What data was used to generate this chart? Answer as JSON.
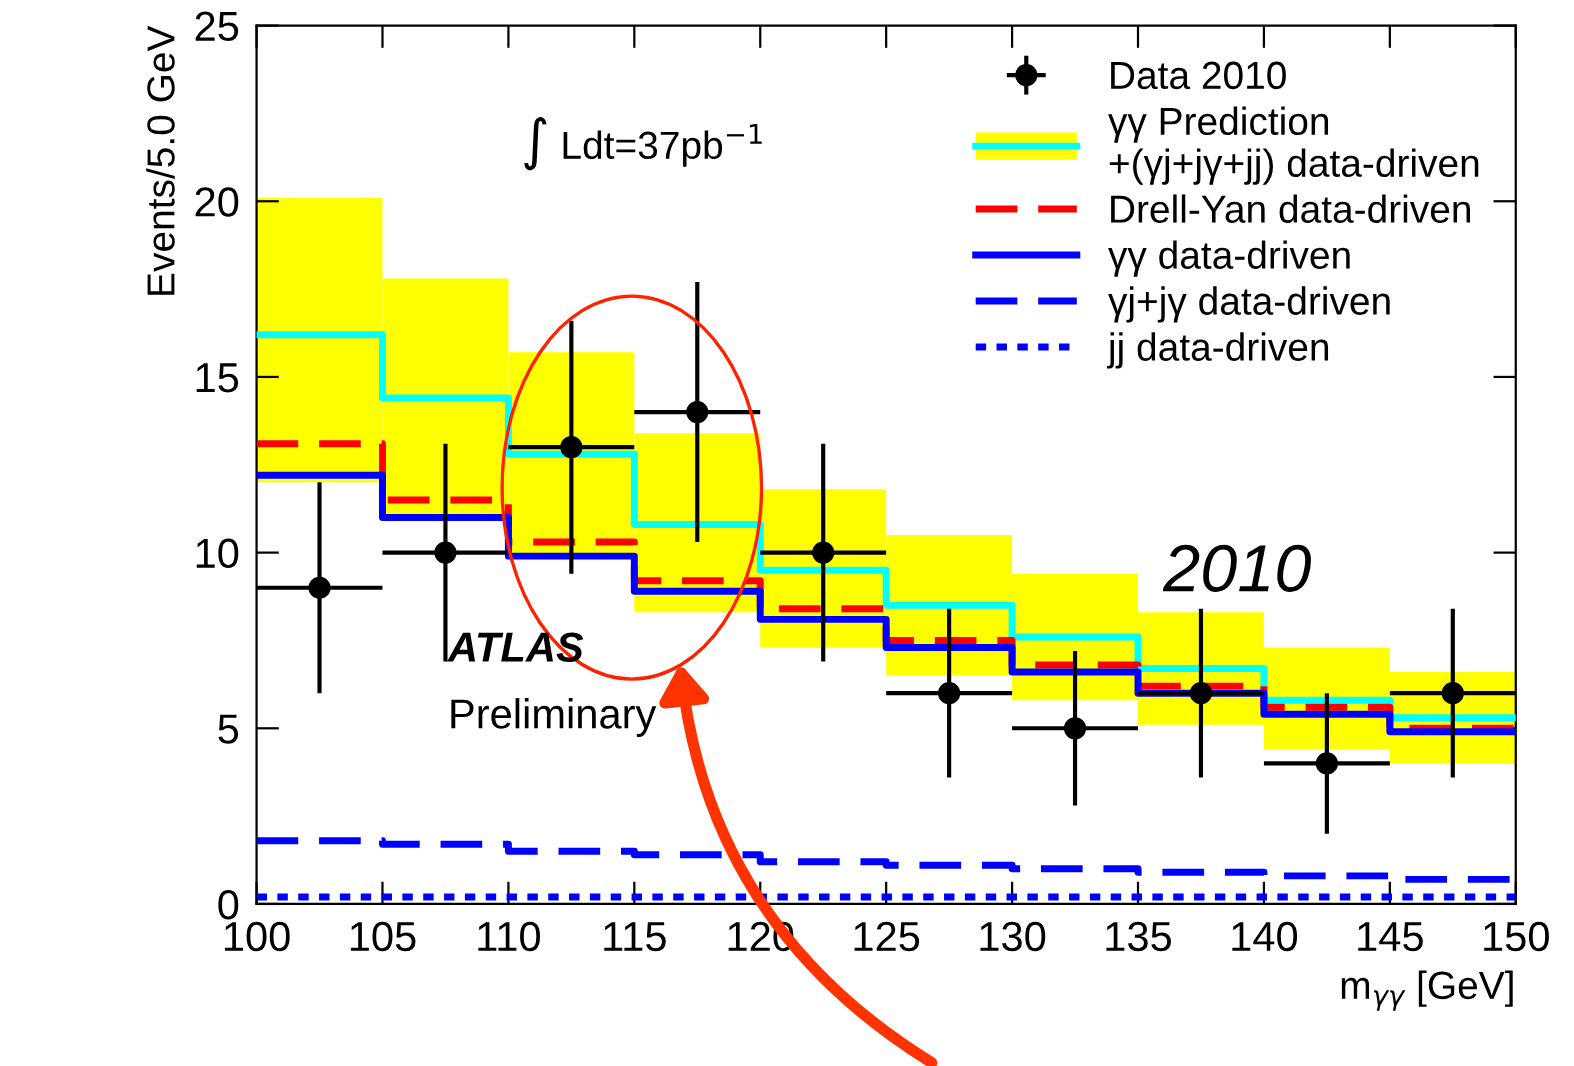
{
  "chart_data": {
    "type": "step",
    "xlabel": "m$_{γγ}$ [GeV]",
    "ylabel": "Events/5.0 GeV",
    "xlim": [
      100,
      150
    ],
    "xticks": [
      100,
      105,
      110,
      115,
      120,
      125,
      130,
      135,
      140,
      145,
      150
    ],
    "ylim": [
      0,
      25
    ],
    "yticks": [
      0,
      5,
      10,
      15,
      20,
      25
    ],
    "legend": "top right",
    "annotations": [
      "∫ Ldt=37pb$^{−1}$",
      "ATLAS",
      "Preliminary",
      "2010"
    ],
    "series": [
      {
        "name": "Data 2010",
        "type": "scatter",
        "marker": "circle",
        "color": "#000000",
        "x": [
          102.5,
          107.5,
          112.5,
          117.5,
          122.5,
          127.5,
          132.5,
          137.5,
          142.5,
          147.5
        ],
        "values": [
          9,
          10,
          13,
          14,
          10,
          6,
          5,
          6,
          4,
          6
        ],
        "errors": [
          [
            6,
            12
          ],
          [
            6.9,
            13.1
          ],
          [
            9.4,
            16.6
          ],
          [
            10.3,
            17.7
          ],
          [
            6.9,
            13.1
          ],
          [
            3.6,
            8.4
          ],
          [
            2.8,
            7.2
          ],
          [
            3.6,
            8.4
          ],
          [
            2,
            6
          ],
          [
            3.6,
            8.4
          ]
        ],
        "xerrors": [
          2.5,
          2.5,
          2.5,
          2.5,
          2.5,
          2.5,
          2.5,
          2.5,
          2.5,
          2.5
        ]
      },
      {
        "type": "bar",
        "color": "#ffff00",
        "x": [
          102.5,
          107.5,
          112.5,
          117.5,
          122.5,
          127.5,
          132.5,
          137.5,
          142.5,
          147.5
        ],
        "base": [
          12,
          11,
          9.9,
          8.3,
          7.3,
          6.5,
          5.8,
          5.1,
          4.4,
          4
        ],
        "values": [
          8.1,
          6.8,
          5.8,
          5.1,
          4.5,
          4.0,
          3.6,
          3.2,
          2.9,
          2.6
        ]
      },
      {
        "name": "γγ Prediction\n+(γj+jγ+jj) data-driven",
        "color": "#00ffff",
        "line_style": "solid",
        "x": [
          100,
          105,
          110,
          115,
          120,
          125,
          130,
          135,
          140,
          145,
          150
        ],
        "values": [
          16.2,
          14.4,
          12.8,
          10.8,
          9.5,
          8.5,
          7.6,
          6.7,
          5.8,
          5.3,
          5.3
        ]
      },
      {
        "name": "Drell-Yan data-driven",
        "color": "#ff0000",
        "line_style": "dashed",
        "x": [
          100,
          105,
          110,
          115,
          120,
          125,
          130,
          135,
          140,
          145,
          150
        ],
        "values": [
          13.1,
          11.5,
          10.3,
          9.2,
          8.4,
          7.5,
          6.8,
          6.2,
          5.6,
          5.0,
          5.0
        ]
      },
      {
        "name": "γγ data-driven",
        "color": "#0000ff",
        "line_style": "solid",
        "x": [
          100,
          105,
          110,
          115,
          120,
          125,
          130,
          135,
          140,
          145,
          150
        ],
        "values": [
          12.2,
          11.0,
          9.9,
          8.9,
          8.1,
          7.3,
          6.6,
          6.0,
          5.4,
          4.9,
          4.9
        ]
      },
      {
        "name": "γj+jγ data-driven",
        "color": "#0000ff",
        "line_style": "dashed",
        "x": [
          100,
          105,
          110,
          115,
          120,
          125,
          130,
          135,
          140,
          145,
          150
        ],
        "values": [
          1.8,
          1.7,
          1.5,
          1.4,
          1.2,
          1.1,
          1.0,
          0.9,
          0.8,
          0.7,
          0.7
        ]
      },
      {
        "name": "jj data-driven",
        "color": "#0000ff",
        "line_style": "dotted",
        "x": [
          100,
          105,
          110,
          115,
          120,
          125,
          130,
          135,
          140,
          145,
          150
        ],
        "values": [
          0.2,
          0.2,
          0.2,
          0.2,
          0.2,
          0.2,
          0.2,
          0.2,
          0.2,
          0.2,
          0.2
        ]
      }
    ]
  }
}
